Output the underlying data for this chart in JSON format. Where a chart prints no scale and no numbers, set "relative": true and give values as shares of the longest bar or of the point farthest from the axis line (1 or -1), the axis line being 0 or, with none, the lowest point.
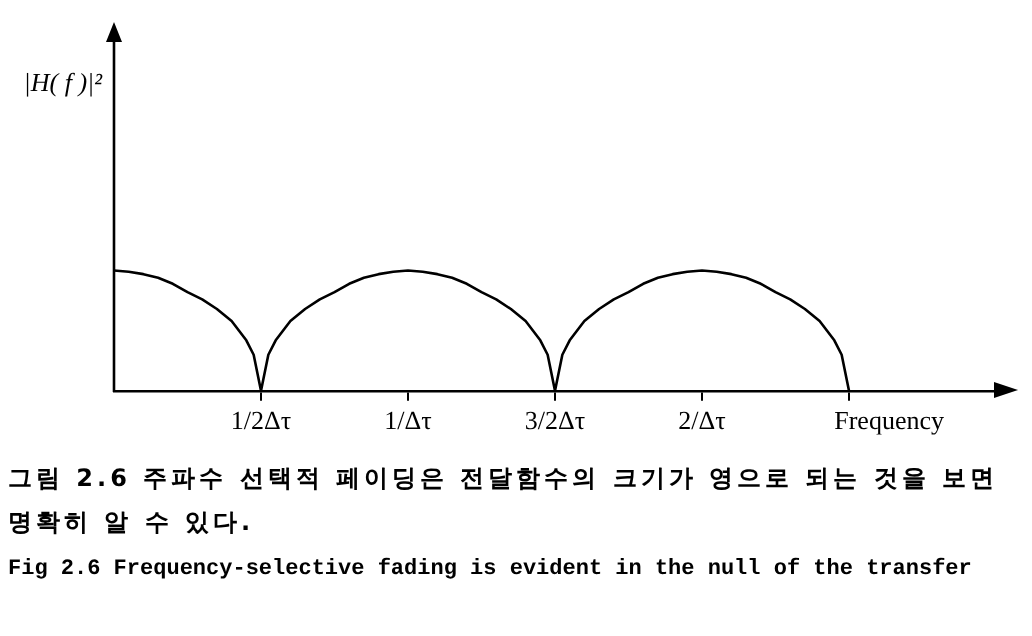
{
  "chart_data": {
    "type": "line",
    "relative": true,
    "xlabel": "Frequency",
    "x": [
      0,
      0.05,
      0.1,
      0.15,
      0.2,
      0.25,
      0.3,
      0.35,
      0.4,
      0.45,
      0.475,
      0.5,
      0.525,
      0.55,
      0.6,
      0.65,
      0.7,
      0.75,
      0.8,
      0.85,
      0.9,
      0.95,
      1,
      1.05,
      1.1,
      1.15,
      1.2,
      1.25,
      1.3,
      1.35,
      1.4,
      1.45,
      1.475,
      1.5,
      1.525,
      1.55,
      1.6,
      1.65,
      1.7,
      1.75,
      1.8,
      1.85,
      1.9,
      1.95,
      2,
      2.05,
      2.1,
      2.15,
      2.2,
      2.25,
      2.3,
      2.35,
      2.4,
      2.45,
      2.475,
      2.5
    ],
    "series": [
      {
        "color": "#000000",
        "values": [
          1,
          0.99,
          0.97,
          0.94,
          0.89,
          0.82,
          0.76,
          0.68,
          0.58,
          0.42,
          0.3,
          0,
          0.3,
          0.42,
          0.58,
          0.68,
          0.76,
          0.82,
          0.89,
          0.94,
          0.97,
          0.99,
          1,
          0.99,
          0.97,
          0.94,
          0.89,
          0.82,
          0.76,
          0.68,
          0.58,
          0.42,
          0.3,
          0,
          0.3,
          0.42,
          0.58,
          0.68,
          0.76,
          0.82,
          0.89,
          0.94,
          0.97,
          0.99,
          1,
          0.99,
          0.97,
          0.94,
          0.89,
          0.82,
          0.76,
          0.68,
          0.58,
          0.42,
          0.3,
          0
        ]
      }
    ],
    "xlim": [
      0,
      3
    ],
    "xticks": [
      {
        "value": 0.5,
        "label": "1/2Δτ"
      },
      {
        "value": 1,
        "label": "1/Δτ"
      },
      {
        "value": 1.5,
        "label": "3/2Δτ"
      },
      {
        "value": 2,
        "label": "2/Δτ"
      },
      {
        "value": 2.5,
        "label": null
      }
    ],
    "grid": false,
    "legend": false,
    "marker": "none",
    "line_style": "solid",
    "annotations": [
      "|H( f )|²",
      "그림 2.6 주파수 선택적 페이딩은 전달함수의 크기가 영으로 되는 것을 보면 명확히 알 수 있다.",
      "Fig 2.6 Frequency-selective fading is evident in the null of the transfer"
    ]
  }
}
